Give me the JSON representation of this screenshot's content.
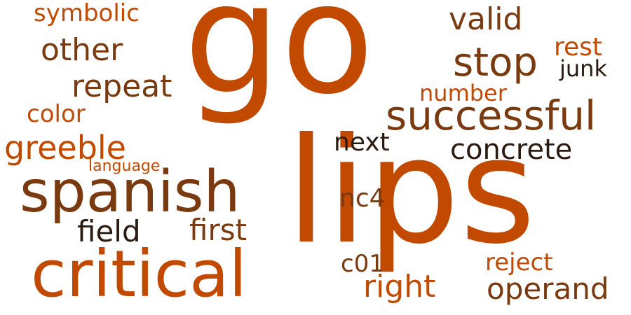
{
  "palette": {
    "orange": "#c24a00",
    "light_orange": "#cc5500",
    "brown": "#7a3a10",
    "dark": "#2a1a10"
  },
  "words": [
    {
      "text": "go",
      "color": "orange"
    },
    {
      "text": "lips",
      "color": "orange"
    },
    {
      "text": "spanish",
      "color": "brown"
    },
    {
      "text": "critical",
      "color": "orange"
    },
    {
      "text": "successful",
      "color": "brown"
    },
    {
      "text": "stop",
      "color": "brown"
    },
    {
      "text": "valid",
      "color": "brown"
    },
    {
      "text": "other",
      "color": "brown"
    },
    {
      "text": "repeat",
      "color": "brown"
    },
    {
      "text": "symbolic",
      "color": "orange"
    },
    {
      "text": "greeble",
      "color": "orange"
    },
    {
      "text": "color",
      "color": "orange"
    },
    {
      "text": "language",
      "color": "orange"
    },
    {
      "text": "concrete",
      "color": "dark"
    },
    {
      "text": "next",
      "color": "dark"
    },
    {
      "text": "number",
      "color": "orange"
    },
    {
      "text": "rest",
      "color": "orange"
    },
    {
      "text": "junk",
      "color": "dark"
    },
    {
      "text": "field",
      "color": "dark"
    },
    {
      "text": "first",
      "color": "brown"
    },
    {
      "text": "nc4",
      "color": "brown"
    },
    {
      "text": "c01",
      "color": "brown"
    },
    {
      "text": "reject",
      "color": "orange"
    },
    {
      "text": "right",
      "color": "orange"
    },
    {
      "text": "operand",
      "color": "brown"
    }
  ]
}
